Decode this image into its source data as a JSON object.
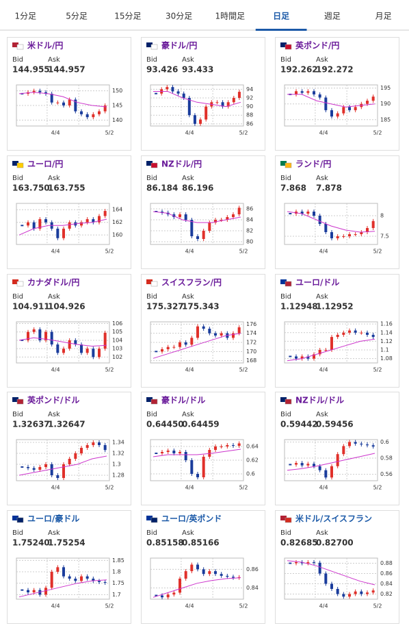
{
  "tabs": [
    "1分足",
    "5分足",
    "15分足",
    "30分足",
    "1時間足",
    "日足",
    "週足",
    "月足"
  ],
  "active_tab": 5,
  "labels": {
    "bid": "Bid",
    "ask": "Ask"
  },
  "x_labels": [
    "4/4",
    "5/2"
  ],
  "cards": [
    {
      "title": "米ドル/円",
      "title_color": "#6a1b9a",
      "bid": "144.955",
      "ask": "144.957",
      "chart": {
        "type": "candlestick",
        "ylim": [
          138,
          152
        ],
        "yticks": [
          140,
          145,
          150
        ],
        "closes": [
          149,
          149.5,
          150,
          149.5,
          149,
          146,
          146,
          145,
          147,
          143,
          142,
          141,
          142,
          143,
          145
        ],
        "ma": [
          149,
          149.5,
          149,
          148,
          146,
          145,
          144.5
        ]
      }
    },
    {
      "title": "豪ドル/円",
      "title_color": "#6a1b9a",
      "bid": "93.426",
      "ask": "93.433",
      "chart": {
        "type": "candlestick",
        "ylim": [
          85.5,
          95
        ],
        "yticks": [
          86,
          88,
          90,
          92,
          94
        ],
        "closes": [
          93,
          94,
          94.5,
          93.5,
          93,
          92,
          88,
          86,
          87,
          90,
          91,
          91,
          90,
          91,
          92,
          93.4
        ],
        "ma": [
          93.5,
          93.5,
          92,
          91,
          90.5,
          90,
          91
        ]
      }
    },
    {
      "title": "英ポンド/円",
      "title_color": "#6a1b9a",
      "bid": "192.262",
      "ask": "192.272",
      "chart": {
        "type": "candlestick",
        "ylim": [
          183,
          196
        ],
        "yticks": [
          185,
          190,
          195
        ],
        "closes": [
          193,
          194,
          193.5,
          194,
          193,
          192,
          188,
          186,
          187,
          189,
          188,
          189,
          190,
          191,
          192.3
        ],
        "ma": [
          193,
          193,
          191,
          190,
          189,
          189.5,
          190
        ]
      }
    },
    {
      "title": "ユーロ/円",
      "title_color": "#6a1b9a",
      "bid": "163.750",
      "ask": "163.755",
      "chart": {
        "type": "candlestick",
        "ylim": [
          158.5,
          165
        ],
        "yticks": [
          160,
          162,
          164
        ],
        "closes": [
          161.5,
          162,
          161,
          162.5,
          162,
          161,
          159.5,
          161,
          162,
          161.5,
          162,
          162.5,
          162,
          163,
          163.8
        ],
        "ma": [
          160,
          161,
          161.5,
          161.5,
          161.8,
          162,
          162.5
        ]
      }
    },
    {
      "title": "NZドル/円",
      "title_color": "#6a1b9a",
      "bid": "86.184",
      "ask": "86.196",
      "chart": {
        "type": "candlestick",
        "ylim": [
          79.5,
          87
        ],
        "yticks": [
          80,
          82,
          84,
          86
        ],
        "closes": [
          85.5,
          85.3,
          85,
          84.5,
          85,
          84,
          81,
          80.5,
          82,
          83.5,
          84,
          84,
          84.5,
          85,
          86.2
        ],
        "ma": [
          85.5,
          85.2,
          84,
          83.5,
          83.5,
          84,
          84.5
        ]
      }
    },
    {
      "title": "ランド/円",
      "title_color": "#6a1b9a",
      "bid": "7.868",
      "ask": "7.878",
      "chart": {
        "type": "candlestick",
        "ylim": [
          7.3,
          8.3
        ],
        "yticks": [
          7.5,
          8
        ],
        "closes": [
          8.05,
          8.1,
          8.05,
          8.1,
          8.0,
          7.8,
          7.6,
          7.45,
          7.5,
          7.5,
          7.55,
          7.55,
          7.6,
          7.7,
          7.87
        ],
        "ma": [
          8.1,
          8.05,
          7.9,
          7.75,
          7.65,
          7.6,
          7.62
        ]
      }
    },
    {
      "title": "カナダドル/円",
      "title_color": "#6a1b9a",
      "bid": "104.911",
      "ask": "104.926",
      "chart": {
        "type": "candlestick",
        "ylim": [
          101.3,
          106.2
        ],
        "yticks": [
          102,
          103,
          104,
          105,
          106
        ],
        "closes": [
          104,
          105,
          105.3,
          104,
          105,
          103.5,
          102.5,
          103,
          104,
          103.5,
          102.5,
          103,
          102,
          103,
          104.9
        ],
        "ma": [
          104,
          104.3,
          104.1,
          103.8,
          103.5,
          103.3,
          103.4
        ]
      }
    },
    {
      "title": "スイスフラン/円",
      "title_color": "#6a1b9a",
      "bid": "175.327",
      "ask": "175.343",
      "chart": {
        "type": "candlestick",
        "ylim": [
          167.5,
          176.5
        ],
        "yticks": [
          168,
          170,
          172,
          174,
          176
        ],
        "closes": [
          170,
          170.5,
          171,
          171,
          172,
          171.5,
          173,
          175.5,
          175,
          174,
          173.5,
          174,
          173,
          174,
          175.3
        ],
        "ma": [
          168.5,
          169.5,
          170.5,
          171.5,
          172.5,
          173.5,
          174
        ]
      }
    },
    {
      "title": "ユーロ/ドル",
      "title_color": "#6a1b9a",
      "bid": "1.12948",
      "ask": "1.12952",
      "chart": {
        "type": "candlestick",
        "ylim": [
          1.07,
          1.165
        ],
        "yticks": [
          1.08,
          1.1,
          1.12,
          1.14,
          1.16
        ],
        "closes": [
          1.085,
          1.08,
          1.085,
          1.08,
          1.09,
          1.1,
          1.1,
          1.13,
          1.135,
          1.14,
          1.145,
          1.14,
          1.14,
          1.135,
          1.13
        ],
        "ma": [
          1.075,
          1.08,
          1.09,
          1.1,
          1.11,
          1.12,
          1.125
        ]
      }
    },
    {
      "title": "英ポンド/ドル",
      "title_color": "#6a1b9a",
      "bid": "1.32637",
      "ask": "1.32647",
      "chart": {
        "type": "candlestick",
        "ylim": [
          1.27,
          1.345
        ],
        "yticks": [
          1.28,
          1.3,
          1.32,
          1.34
        ],
        "closes": [
          1.295,
          1.293,
          1.29,
          1.295,
          1.3,
          1.28,
          1.275,
          1.3,
          1.31,
          1.32,
          1.33,
          1.335,
          1.34,
          1.335,
          1.326
        ],
        "ma": [
          1.28,
          1.285,
          1.29,
          1.295,
          1.3,
          1.31,
          1.315
        ]
      }
    },
    {
      "title": "豪ドル/ドル",
      "title_color": "#6a1b9a",
      "bid": "0.64450",
      "ask": "0.64459",
      "chart": {
        "type": "candlestick",
        "ylim": [
          0.59,
          0.65
        ],
        "yticks": [
          0.6,
          0.62,
          0.64
        ],
        "closes": [
          0.63,
          0.632,
          0.634,
          0.63,
          0.632,
          0.62,
          0.6,
          0.595,
          0.625,
          0.635,
          0.64,
          0.64,
          0.642,
          0.641,
          0.6445
        ],
        "ma": [
          0.625,
          0.628,
          0.628,
          0.628,
          0.63,
          0.633,
          0.636
        ]
      }
    },
    {
      "title": "NZドル/ドル",
      "title_color": "#6a1b9a",
      "bid": "0.59442",
      "ask": "0.59456",
      "chart": {
        "type": "candlestick",
        "ylim": [
          0.552,
          0.603
        ],
        "yticks": [
          0.56,
          0.58,
          0.6
        ],
        "closes": [
          0.572,
          0.574,
          0.571,
          0.573,
          0.57,
          0.565,
          0.556,
          0.57,
          0.585,
          0.595,
          0.6,
          0.598,
          0.597,
          0.596,
          0.5944
        ],
        "ma": [
          0.565,
          0.567,
          0.57,
          0.574,
          0.578,
          0.582,
          0.586
        ]
      }
    },
    {
      "title": "ユーロ/豪ドル",
      "title_color": "#1c5aa8",
      "bid": "1.75240",
      "ask": "1.75254",
      "chart": {
        "type": "candlestick",
        "ylim": [
          1.68,
          1.86
        ],
        "yticks": [
          1.7,
          1.75,
          1.8,
          1.85
        ],
        "closes": [
          1.72,
          1.71,
          1.72,
          1.7,
          1.73,
          1.8,
          1.82,
          1.78,
          1.77,
          1.76,
          1.78,
          1.77,
          1.76,
          1.755,
          1.752
        ],
        "ma": [
          1.69,
          1.705,
          1.72,
          1.735,
          1.75,
          1.76,
          1.765
        ]
      }
    },
    {
      "title": "ユーロ/英ポンド",
      "title_color": "#1c5aa8",
      "bid": "0.85158",
      "ask": "0.85166",
      "chart": {
        "type": "candlestick",
        "ylim": [
          0.828,
          0.872
        ],
        "yticks": [
          0.84,
          0.86
        ],
        "closes": [
          0.832,
          0.83,
          0.833,
          0.835,
          0.85,
          0.858,
          0.865,
          0.86,
          0.855,
          0.858,
          0.855,
          0.853,
          0.852,
          0.851,
          0.8516
        ],
        "ma": [
          0.83,
          0.835,
          0.84,
          0.845,
          0.848,
          0.85,
          0.851
        ]
      }
    },
    {
      "title": "米ドル/スイスフラン",
      "title_color": "#1c5aa8",
      "bid": "0.82685",
      "ask": "0.82700",
      "chart": {
        "type": "candlestick",
        "ylim": [
          0.81,
          0.89
        ],
        "yticks": [
          0.82,
          0.84,
          0.86,
          0.88
        ],
        "closes": [
          0.88,
          0.882,
          0.88,
          0.882,
          0.881,
          0.86,
          0.84,
          0.83,
          0.82,
          0.815,
          0.82,
          0.825,
          0.82,
          0.823,
          0.827
        ],
        "ma": [
          0.885,
          0.882,
          0.875,
          0.865,
          0.855,
          0.845,
          0.838
        ]
      }
    }
  ]
}
